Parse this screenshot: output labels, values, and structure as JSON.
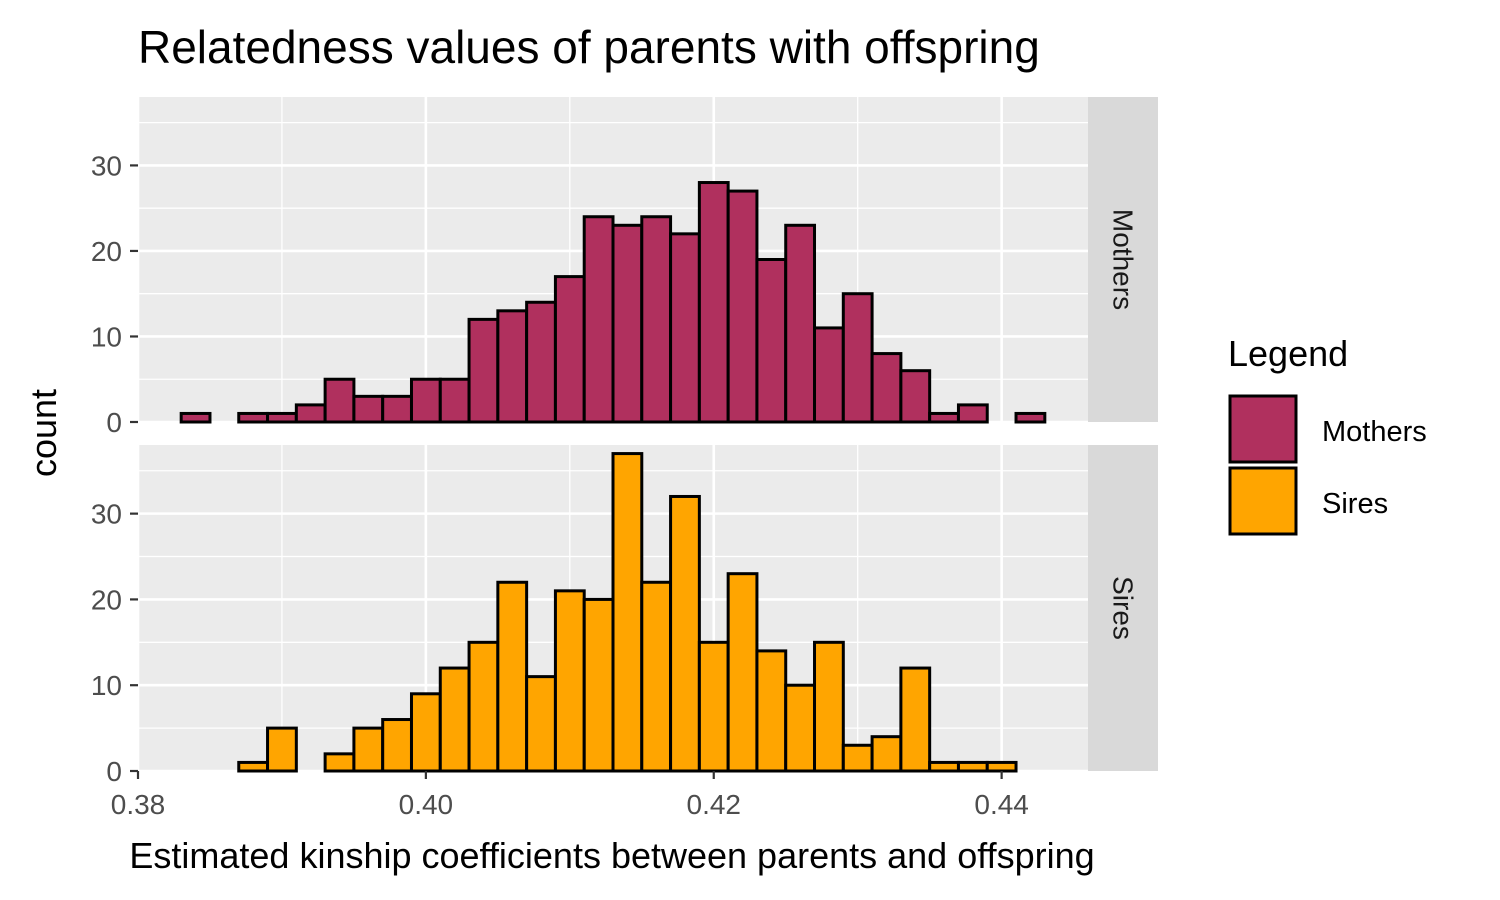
{
  "chart_data": {
    "type": "bar",
    "title": "Relatedness values of parents with offspring",
    "xlabel": "Estimated kinship coefficients between parents and offspring",
    "ylabel": "count",
    "xlim": [
      0.38,
      0.446
    ],
    "xticks": [
      0.38,
      0.4,
      0.42,
      0.44
    ],
    "xtick_labels": [
      "0.38",
      "0.40",
      "0.42",
      "0.44"
    ],
    "ylim": [
      0,
      38
    ],
    "yticks": [
      0,
      10,
      20,
      30
    ],
    "ytick_labels": [
      "0",
      "10",
      "20",
      "30"
    ],
    "bin_width": 0.002,
    "grid": true,
    "legend": {
      "title": "Legend",
      "position": "right",
      "entries": [
        {
          "label": "Mothers",
          "color": "#b0305e"
        },
        {
          "label": "Sires",
          "color": "#ffa500"
        }
      ]
    },
    "panels": [
      {
        "name": "Mothers",
        "color": "#b0305e",
        "bin_centers": [
          0.384,
          0.386,
          0.388,
          0.39,
          0.392,
          0.394,
          0.396,
          0.398,
          0.4,
          0.402,
          0.404,
          0.406,
          0.408,
          0.41,
          0.412,
          0.414,
          0.416,
          0.418,
          0.42,
          0.422,
          0.424,
          0.426,
          0.428,
          0.43,
          0.432,
          0.434,
          0.436,
          0.438,
          0.44,
          0.442
        ],
        "values": [
          1,
          0,
          1,
          1,
          2,
          5,
          3,
          3,
          5,
          5,
          12,
          13,
          14,
          17,
          24,
          23,
          24,
          22,
          28,
          27,
          19,
          23,
          11,
          15,
          8,
          6,
          1,
          2,
          0,
          1
        ]
      },
      {
        "name": "Sires",
        "color": "#ffa500",
        "bin_centers": [
          0.384,
          0.386,
          0.388,
          0.39,
          0.392,
          0.394,
          0.396,
          0.398,
          0.4,
          0.402,
          0.404,
          0.406,
          0.408,
          0.41,
          0.412,
          0.414,
          0.416,
          0.418,
          0.42,
          0.422,
          0.424,
          0.426,
          0.428,
          0.43,
          0.432,
          0.434,
          0.436,
          0.438,
          0.44,
          0.442
        ],
        "values": [
          0,
          0,
          1,
          5,
          0,
          2,
          5,
          6,
          9,
          12,
          15,
          22,
          11,
          21,
          20,
          37,
          22,
          32,
          15,
          23,
          14,
          10,
          15,
          3,
          4,
          12,
          1,
          1,
          1,
          0
        ]
      }
    ]
  }
}
